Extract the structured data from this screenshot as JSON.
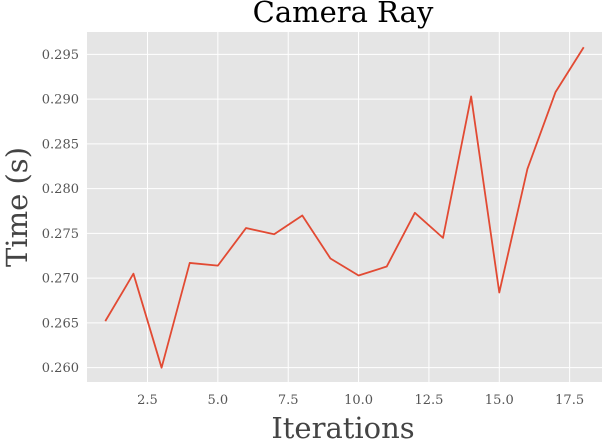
{
  "chart_data": {
    "type": "line",
    "title": "Camera Ray",
    "xlabel": "Iterations",
    "ylabel": "Time (s)",
    "xlim": [
      0.35,
      18.65
    ],
    "ylim": [
      0.2584,
      0.2975
    ],
    "xticks": [
      2.5,
      5.0,
      7.5,
      10.0,
      12.5,
      15.0,
      17.5
    ],
    "yticks": [
      0.26,
      0.265,
      0.27,
      0.275,
      0.28,
      0.285,
      0.29,
      0.295
    ],
    "grid": true,
    "series": [
      {
        "color": "#e24a33",
        "x": [
          1,
          2,
          3,
          4,
          5,
          6,
          7,
          8,
          9,
          10,
          11,
          12,
          13,
          14,
          15,
          16,
          17,
          18
        ],
        "y": [
          0.2652,
          0.2705,
          0.26,
          0.2717,
          0.2714,
          0.2756,
          0.2749,
          0.277,
          0.2722,
          0.2703,
          0.2713,
          0.2773,
          0.2745,
          0.2903,
          0.2684,
          0.2822,
          0.2908,
          0.2958
        ]
      }
    ]
  },
  "colors": {
    "plot_background": "#e5e5e5",
    "grid": "#ffffff",
    "line": "#e24a33"
  }
}
